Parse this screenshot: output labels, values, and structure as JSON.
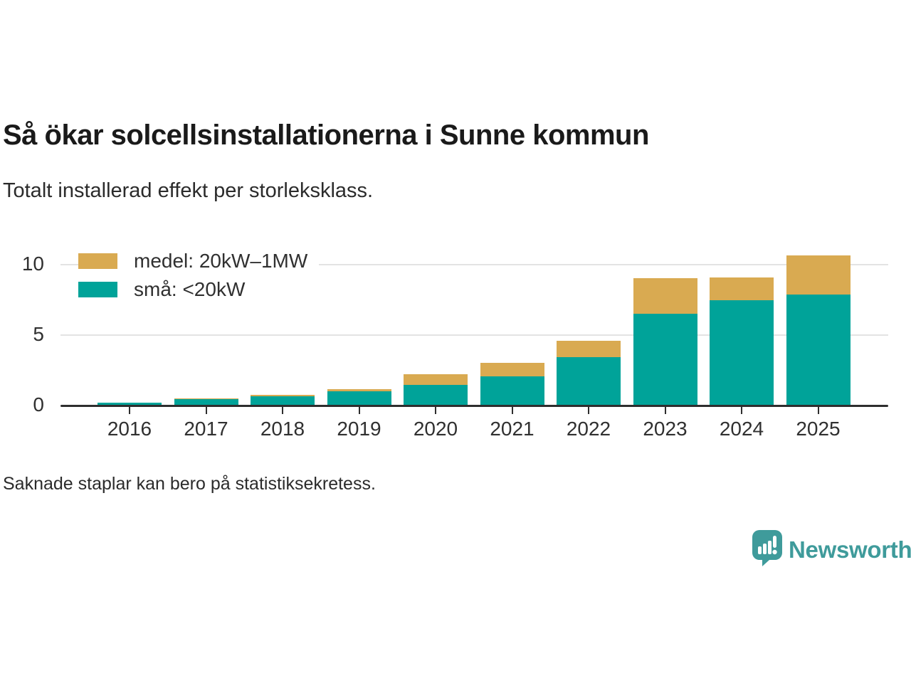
{
  "header": {
    "title": "Så ökar solcellsinstallationerna i Sunne kommun",
    "subtitle": "Totalt installerad effekt per storleksklass."
  },
  "legend": [
    {
      "label": "medel: 20kW–1MW",
      "color": "#d9aa51"
    },
    {
      "label": "små: <20kW",
      "color": "#00a399"
    }
  ],
  "chart_data": {
    "type": "bar",
    "stacked": true,
    "title": "Så ökar solcellsinstallationerna i Sunne kommun",
    "subtitle": "Totalt installerad effekt per storleksklass.",
    "categories": [
      "2016",
      "2017",
      "2018",
      "2019",
      "2020",
      "2021",
      "2022",
      "2023",
      "2024",
      "2025"
    ],
    "series": [
      {
        "name": "små: <20kW",
        "color": "#00a399",
        "values": [
          0.2,
          0.45,
          0.65,
          1.0,
          1.45,
          2.05,
          3.45,
          6.5,
          7.5,
          7.9
        ]
      },
      {
        "name": "medel: 20kW–1MW",
        "color": "#d9aa51",
        "values": [
          0,
          0.05,
          0.1,
          0.15,
          0.75,
          0.95,
          1.15,
          2.55,
          1.6,
          2.8
        ]
      }
    ],
    "totals": [
      0.2,
      0.5,
      0.75,
      1.15,
      2.2,
      3.0,
      4.6,
      9.05,
      9.1,
      10.7
    ],
    "xlabel": "",
    "ylabel": "",
    "yticks": [
      0,
      5,
      10
    ],
    "ylim": [
      0,
      11.4
    ],
    "grid": "horizontal",
    "legend_position": "top-left-inside"
  },
  "footer": {
    "note": "Saknade staplar kan bero på statistiksekretess."
  },
  "branding": {
    "name": "Newsworthy",
    "color": "#3f9b9b",
    "icon": "bar-chart-speech-bubble-icon"
  }
}
